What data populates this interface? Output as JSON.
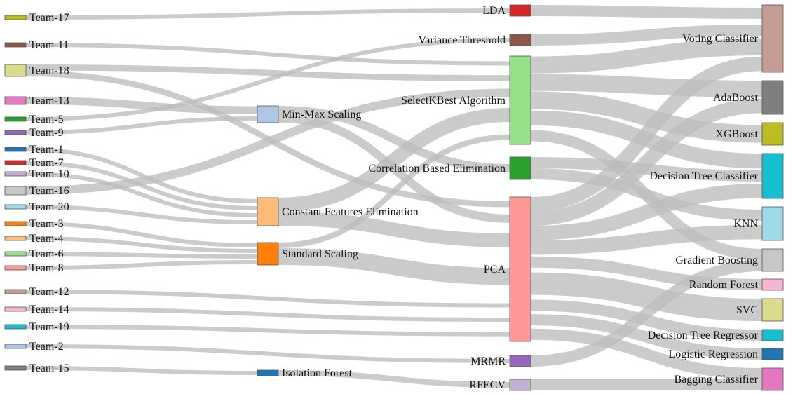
{
  "chart_data": {
    "type": "sankey",
    "title": "",
    "stages": [
      "teams",
      "preprocessing",
      "feature_selection",
      "models"
    ],
    "nodes": [
      {
        "id": "t17",
        "label": "Team-17",
        "color": "#bcbd22"
      },
      {
        "id": "t11",
        "label": "Team-11",
        "color": "#8c564b"
      },
      {
        "id": "t18",
        "label": "Team-18",
        "color": "#dbdb8d"
      },
      {
        "id": "t13",
        "label": "Team-13",
        "color": "#e377c2"
      },
      {
        "id": "t5",
        "label": "Team-5",
        "color": "#2ca02c"
      },
      {
        "id": "t9",
        "label": "Team-9",
        "color": "#9467bd"
      },
      {
        "id": "t1",
        "label": "Team-1",
        "color": "#1f77b4"
      },
      {
        "id": "t7",
        "label": "Team-7",
        "color": "#d62728"
      },
      {
        "id": "t10",
        "label": "Team-10",
        "color": "#c5b0d5"
      },
      {
        "id": "t16",
        "label": "Team-16",
        "color": "#c7c7c7"
      },
      {
        "id": "t20",
        "label": "Team-20",
        "color": "#9edae5"
      },
      {
        "id": "t3",
        "label": "Team-3",
        "color": "#ff7f0e"
      },
      {
        "id": "t4",
        "label": "Team-4",
        "color": "#ffbb78"
      },
      {
        "id": "t6",
        "label": "Team-6",
        "color": "#98df8a"
      },
      {
        "id": "t8",
        "label": "Team-8",
        "color": "#ff9896"
      },
      {
        "id": "t12",
        "label": "Team-12",
        "color": "#c49c94"
      },
      {
        "id": "t14",
        "label": "Team-14",
        "color": "#f7b6d2"
      },
      {
        "id": "t19",
        "label": "Team-19",
        "color": "#17becf"
      },
      {
        "id": "t2",
        "label": "Team-2",
        "color": "#aec7e8"
      },
      {
        "id": "t15",
        "label": "Team-15",
        "color": "#7f7f7f"
      },
      {
        "id": "minmax",
        "label": "Min-Max Scaling",
        "color": "#aec7e8"
      },
      {
        "id": "cfe",
        "label": "Constant Features Elimination",
        "color": "#ffbb78"
      },
      {
        "id": "std",
        "label": "Standard Scaling",
        "color": "#ff7f0e"
      },
      {
        "id": "iso",
        "label": "Isolation Forest",
        "color": "#1f77b4"
      },
      {
        "id": "lda",
        "label": "LDA",
        "color": "#d62728"
      },
      {
        "id": "vt",
        "label": "Variance Threshold",
        "color": "#8c564b"
      },
      {
        "id": "skb",
        "label": "SelectKBest Algorithm",
        "color": "#98df8a"
      },
      {
        "id": "cbe",
        "label": "Correlation Based Elimination",
        "color": "#2ca02c"
      },
      {
        "id": "pca",
        "label": "PCA",
        "color": "#ff9896"
      },
      {
        "id": "mrmr",
        "label": "MRMR",
        "color": "#9467bd"
      },
      {
        "id": "rfecv",
        "label": "RFECV",
        "color": "#c5b0d5"
      },
      {
        "id": "voting",
        "label": "Voting Classifier",
        "color": "#c49c94"
      },
      {
        "id": "ada",
        "label": "AdaBoost",
        "color": "#7f7f7f"
      },
      {
        "id": "xgb",
        "label": "XGBoost",
        "color": "#bcbd22"
      },
      {
        "id": "dtc",
        "label": "Decision Tree Classifier",
        "color": "#17becf"
      },
      {
        "id": "knn",
        "label": "KNN",
        "color": "#9edae5"
      },
      {
        "id": "gb",
        "label": "Gradient Boosting",
        "color": "#c7c7c7"
      },
      {
        "id": "rf",
        "label": "Random Forest",
        "color": "#f7b6d2"
      },
      {
        "id": "svc",
        "label": "SVC",
        "color": "#dbdb8d"
      },
      {
        "id": "dtr",
        "label": "Decision Tree Regressor",
        "color": "#17becf"
      },
      {
        "id": "lr",
        "label": "Logistic Regression",
        "color": "#1f77b4"
      },
      {
        "id": "bag",
        "label": "Bagging Classifier",
        "color": "#e377c2"
      }
    ],
    "links": [
      {
        "source": "t17",
        "target": "lda",
        "value": 1
      },
      {
        "source": "t11",
        "target": "skb",
        "value": 1
      },
      {
        "source": "t18",
        "target": "skb",
        "value": 1
      },
      {
        "source": "t18",
        "target": "pca",
        "value": 1
      },
      {
        "source": "t13",
        "target": "minmax",
        "value": 1
      },
      {
        "source": "t5",
        "target": "vt",
        "value": 1
      },
      {
        "source": "t9",
        "target": "minmax",
        "value": 1
      },
      {
        "source": "t1",
        "target": "cfe",
        "value": 1
      },
      {
        "source": "t7",
        "target": "cfe",
        "value": 1
      },
      {
        "source": "t10",
        "target": "cfe",
        "value": 1
      },
      {
        "source": "t16",
        "target": "skb",
        "value": 1
      },
      {
        "source": "t20",
        "target": "cfe",
        "value": 1
      },
      {
        "source": "t3",
        "target": "std",
        "value": 1
      },
      {
        "source": "t4",
        "target": "std",
        "value": 1
      },
      {
        "source": "t6",
        "target": "std",
        "value": 1
      },
      {
        "source": "t8",
        "target": "std",
        "value": 1
      },
      {
        "source": "t12",
        "target": "pca",
        "value": 1
      },
      {
        "source": "t14",
        "target": "pca",
        "value": 1
      },
      {
        "source": "t19",
        "target": "pca",
        "value": 1
      },
      {
        "source": "t2",
        "target": "mrmr",
        "value": 1
      },
      {
        "source": "t15",
        "target": "iso",
        "value": 1
      },
      {
        "source": "minmax",
        "target": "cbe",
        "value": 1
      },
      {
        "source": "minmax",
        "target": "pca",
        "value": 1
      },
      {
        "source": "cfe",
        "target": "skb",
        "value": 2
      },
      {
        "source": "cfe",
        "target": "pca",
        "value": 2
      },
      {
        "source": "std",
        "target": "pca",
        "value": 3
      },
      {
        "source": "std",
        "target": "skb",
        "value": 1
      },
      {
        "source": "iso",
        "target": "rfecv",
        "value": 1
      },
      {
        "source": "lda",
        "target": "voting",
        "value": 1
      },
      {
        "source": "vt",
        "target": "voting",
        "value": 1
      },
      {
        "source": "skb",
        "target": "voting",
        "value": 1
      },
      {
        "source": "skb",
        "target": "ada",
        "value": 1
      },
      {
        "source": "skb",
        "target": "xgb",
        "value": 1
      },
      {
        "source": "skb",
        "target": "dtc",
        "value": 1
      },
      {
        "source": "skb",
        "target": "gb",
        "value": 1
      },
      {
        "source": "cbe",
        "target": "dtc",
        "value": 1
      },
      {
        "source": "cbe",
        "target": "knn",
        "value": 1
      },
      {
        "source": "pca",
        "target": "voting",
        "value": 1
      },
      {
        "source": "pca",
        "target": "dtc",
        "value": 1
      },
      {
        "source": "pca",
        "target": "knn",
        "value": 1
      },
      {
        "source": "pca",
        "target": "rf",
        "value": 1
      },
      {
        "source": "pca",
        "target": "svc",
        "value": 2
      },
      {
        "source": "pca",
        "target": "dtr",
        "value": 1
      },
      {
        "source": "pca",
        "target": "lr",
        "value": 1
      },
      {
        "source": "pca",
        "target": "bag",
        "value": 1
      },
      {
        "source": "pca",
        "target": "ada",
        "value": 1
      },
      {
        "source": "mrmr",
        "target": "gb",
        "value": 1
      },
      {
        "source": "rfecv",
        "target": "bag",
        "value": 1
      }
    ]
  }
}
